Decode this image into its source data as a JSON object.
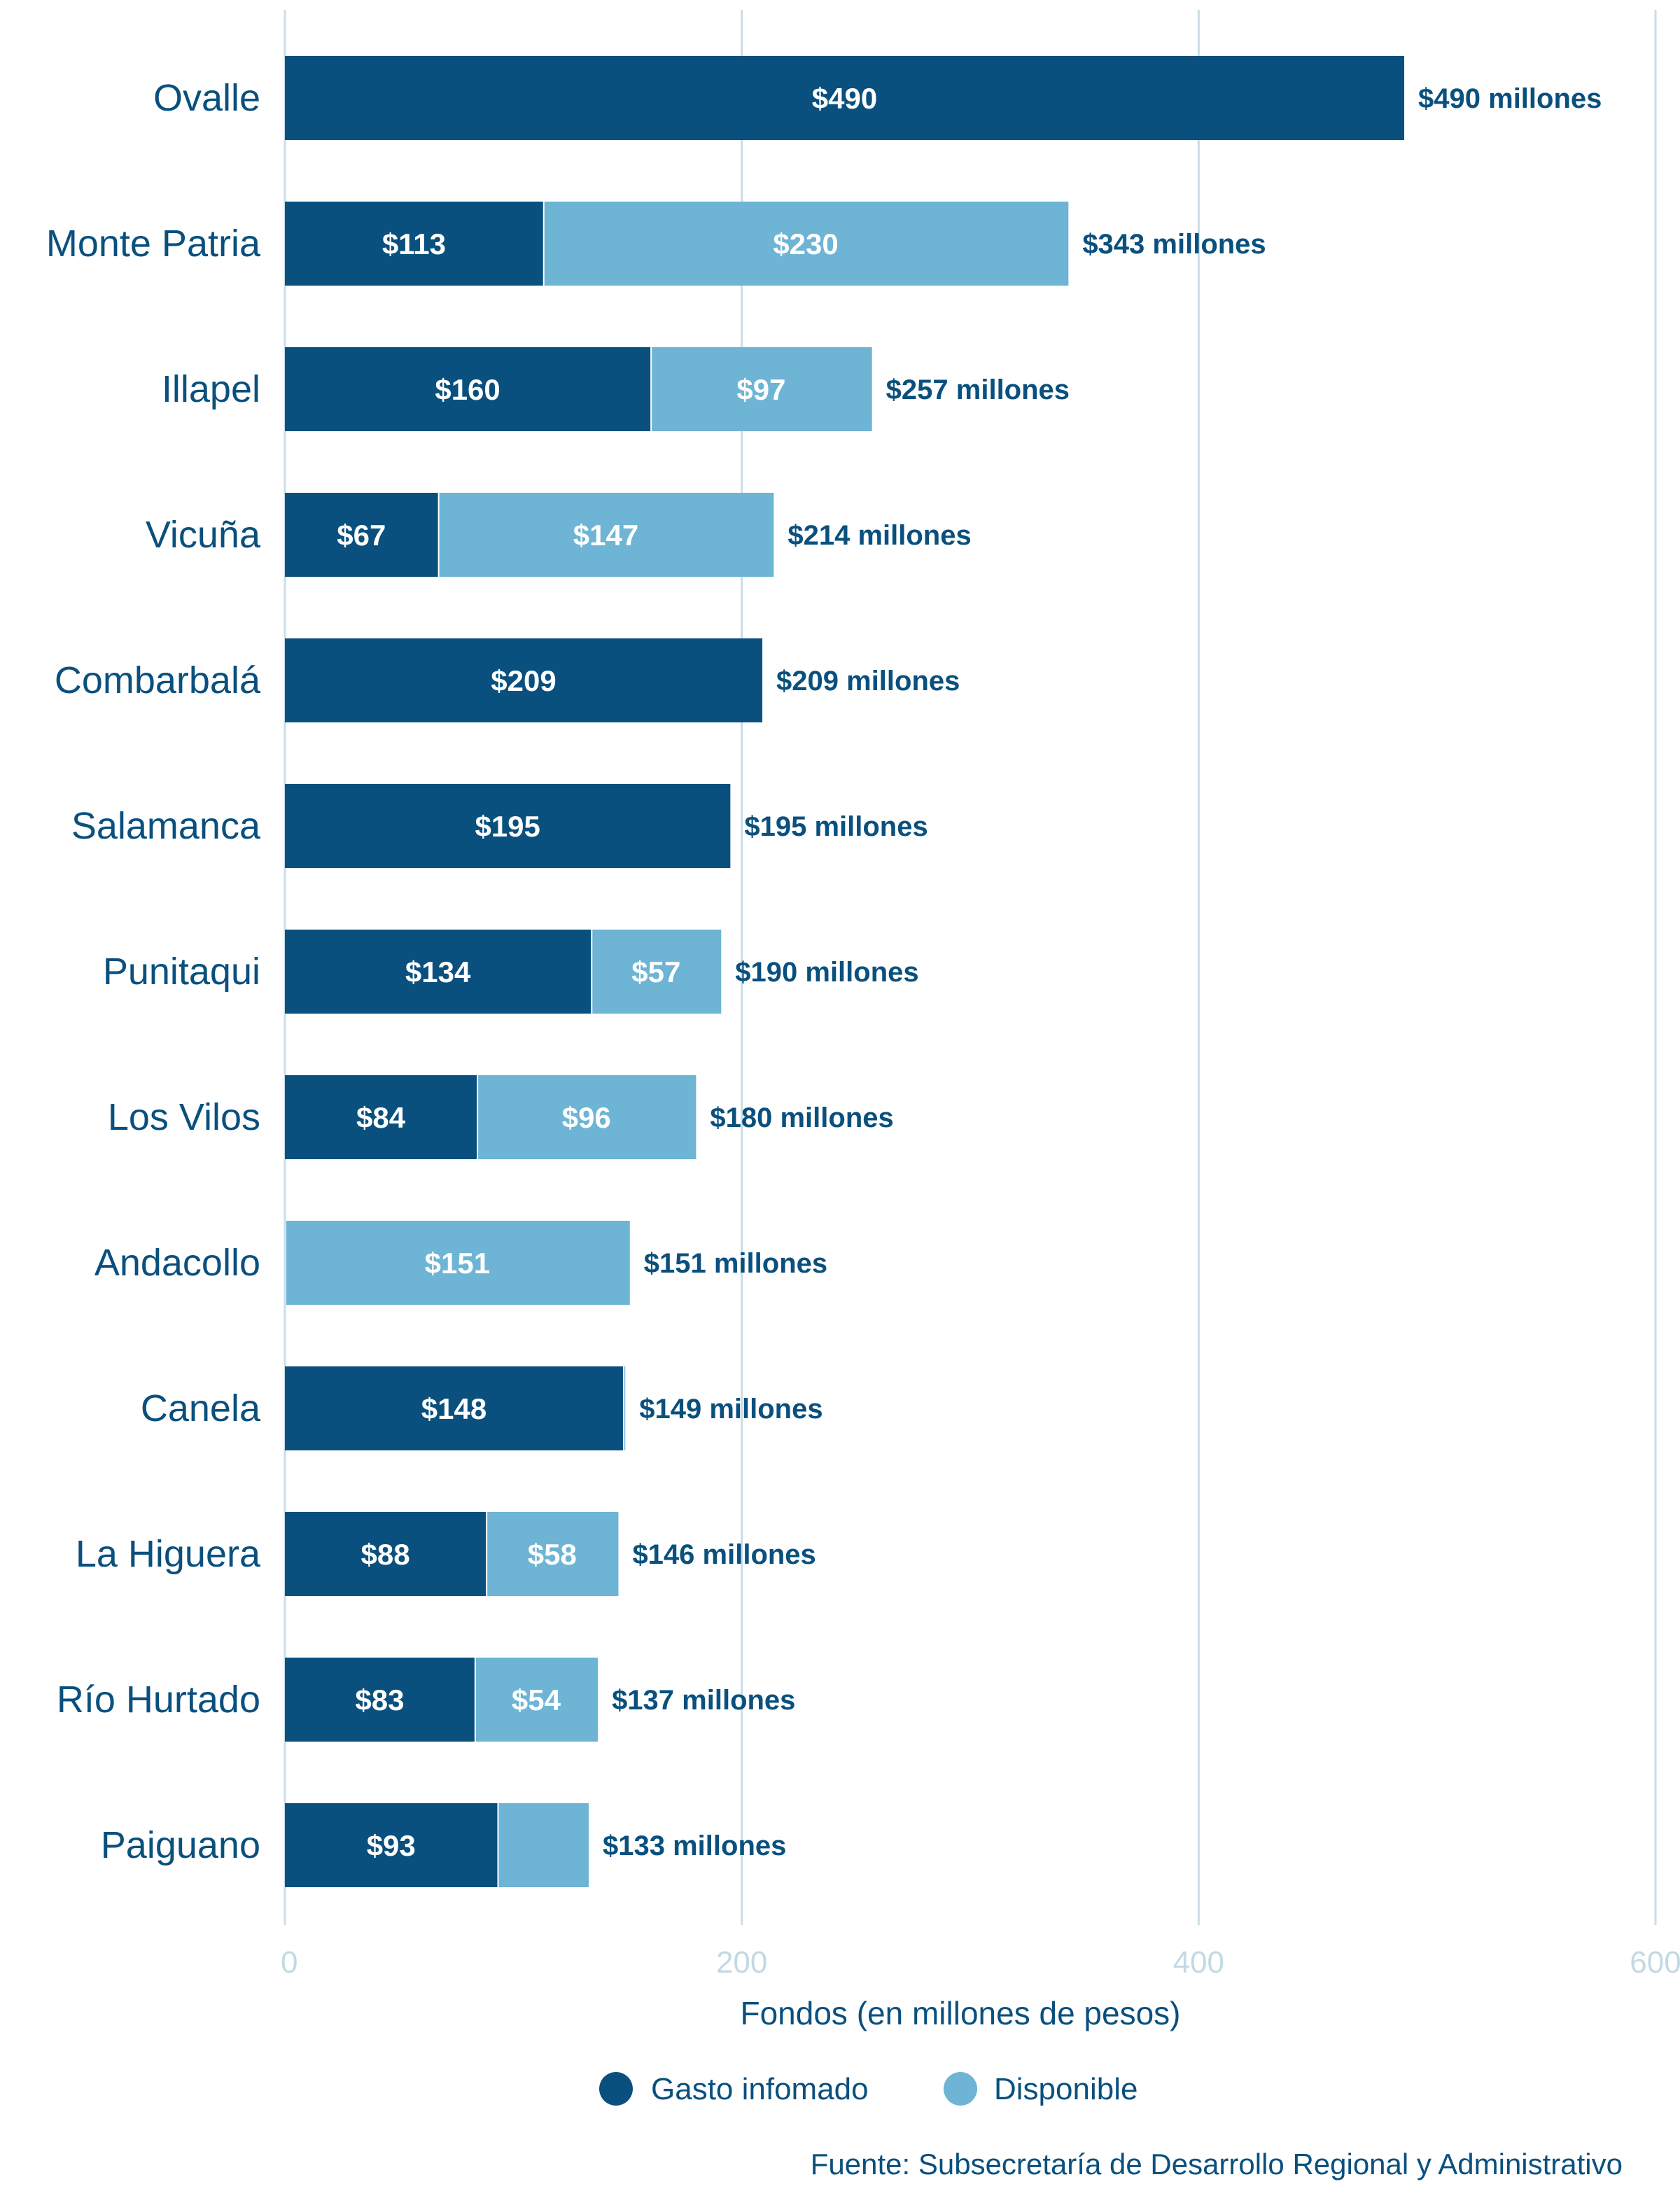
{
  "colors": {
    "gasto": "#0a507e",
    "disponible": "#6db4d5",
    "grid": "#c8dde8",
    "text": "#0a507e",
    "tick": "#c3d9e4"
  },
  "chart_data": {
    "type": "bar",
    "orientation": "horizontal",
    "stacked": true,
    "categories": [
      "Ovalle",
      "Monte Patria",
      "Illapel",
      "Vicuña",
      "Combarbalá",
      "Salamanca",
      "Punitaqui",
      "Los Vilos",
      "Andacollo",
      "Canela",
      "La Higuera",
      "Río Hurtado",
      "Paiguano"
    ],
    "series": [
      {
        "name": "Gasto infomado",
        "values": [
          490,
          113,
          160,
          67,
          209,
          195,
          134,
          84,
          0,
          148,
          88,
          83,
          93
        ],
        "labels": [
          "$490",
          "$113",
          "$160",
          "$67",
          "$209",
          "$195",
          "$134",
          "$84",
          "",
          "$148",
          "$88",
          "$83",
          "$93"
        ]
      },
      {
        "name": "Disponible",
        "values": [
          0,
          230,
          97,
          147,
          0,
          0,
          57,
          96,
          151,
          1,
          58,
          54,
          40
        ],
        "labels": [
          "",
          "$230",
          "$97",
          "$147",
          "",
          "",
          "$57",
          "$96",
          "$151",
          "",
          "$58",
          "$54",
          ""
        ]
      }
    ],
    "totals": [
      "$490 millones",
      "$343 millones",
      "$257 millones",
      "$214 millones",
      "$209 millones",
      "$195 millones",
      "$190 millones",
      "$180 millones",
      "$151 millones",
      "$149 millones",
      "$146 millones",
      "$137 millones",
      "$133 millones"
    ],
    "xlabel": "Fondos (en millones de pesos)",
    "xlim": [
      0,
      600
    ],
    "xticks": [
      "0",
      "200",
      "400",
      "600"
    ],
    "grid": true,
    "legend_placement": "bottom",
    "source": "Fuente: Subsecretaría de Desarrollo Regional y Administrativo"
  }
}
